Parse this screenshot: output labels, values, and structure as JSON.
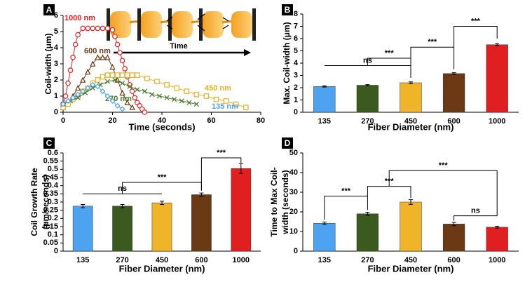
{
  "chart_data": [
    {
      "type": "line",
      "panel": "A",
      "xlabel": "Time (seconds)",
      "ylabel": [
        "Coil-width (μm)"
      ],
      "xlim": [
        0,
        80
      ],
      "xticks": [
        0,
        20,
        40,
        60,
        80
      ],
      "ylim": [
        0,
        6
      ],
      "yticks": [
        0,
        1,
        2,
        3,
        4,
        5,
        6
      ],
      "series": [
        {
          "name": "1000 nm",
          "color": "#e02020",
          "marker": "circle",
          "x": [
            0,
            1,
            2,
            3,
            4,
            5,
            6,
            8,
            10,
            12,
            14,
            16,
            18,
            20,
            21,
            22,
            23,
            24,
            25,
            26,
            27,
            28,
            29,
            30,
            31,
            32,
            33
          ],
          "values": [
            0.5,
            1,
            1.8,
            2.6,
            3.4,
            4.2,
            4.8,
            5.2,
            5.2,
            5.2,
            5.2,
            5.2,
            5.2,
            5.1,
            4.7,
            4.2,
            3.7,
            3.2,
            2.7,
            2.2,
            1.7,
            1.3,
            0.9,
            0.6,
            0.4,
            0.2,
            0
          ]
        },
        {
          "name": "600 nm",
          "color": "#6b3a14",
          "marker": "triangle",
          "x": [
            0,
            2,
            4,
            6,
            8,
            10,
            12,
            14,
            16,
            18,
            20,
            22,
            24,
            26,
            28
          ],
          "values": [
            0.3,
            0.6,
            1.0,
            1.5,
            2.0,
            2.5,
            3.0,
            3.4,
            3.4,
            3.4,
            2.8,
            2.0,
            1.2,
            0.6,
            0.3
          ]
        },
        {
          "name": "450 nm",
          "color": "#e8b020",
          "marker": "square",
          "x": [
            0,
            2,
            4,
            6,
            8,
            10,
            12,
            14,
            16,
            18,
            20,
            22,
            24,
            26,
            28,
            30,
            34,
            38,
            42,
            46,
            50,
            54,
            58,
            62,
            66,
            70,
            74
          ],
          "values": [
            0.3,
            0.5,
            0.8,
            1.0,
            1.3,
            1.5,
            1.8,
            2.0,
            2.2,
            2.3,
            2.3,
            2.3,
            2.3,
            2.3,
            2.3,
            2.3,
            2.1,
            1.9,
            1.7,
            1.5,
            1.3,
            1.1,
            1.0,
            0.8,
            0.7,
            0.5,
            0.3
          ]
        },
        {
          "name": "270 nm",
          "color": "#4a7a2a",
          "marker": "x",
          "x": [
            0,
            3,
            6,
            9,
            12,
            15,
            18,
            21,
            24,
            27,
            30,
            33,
            36,
            39,
            42,
            45,
            48,
            51,
            54
          ],
          "values": [
            0.5,
            0.7,
            0.9,
            1.2,
            1.5,
            1.7,
            1.9,
            2.0,
            1.8,
            1.6,
            1.4,
            1.3,
            1.1,
            1.0,
            0.9,
            0.8,
            0.7,
            0.6,
            0.5
          ]
        },
        {
          "name": "135 nm",
          "color": "#4da3f0",
          "marker": "diamond",
          "x": [
            0,
            2,
            4,
            6,
            8,
            10,
            12,
            14,
            16,
            18,
            20,
            22,
            24
          ],
          "values": [
            0.5,
            0.7,
            0.9,
            1.1,
            1.3,
            1.5,
            1.7,
            1.6,
            1.3,
            1.0,
            0.7,
            0.4,
            0.2
          ]
        }
      ],
      "annotation": "Time"
    },
    {
      "type": "bar",
      "panel": "B",
      "xlabel": "Fiber Diameter (nm)",
      "ylabel": [
        "Max. Coil-width (μm)"
      ],
      "categories": [
        "135",
        "270",
        "450",
        "600",
        "1000"
      ],
      "values": [
        2.1,
        2.2,
        2.4,
        3.15,
        5.5
      ],
      "errors": [
        0.05,
        0.05,
        0.07,
        0.07,
        0.08
      ],
      "colors": [
        "#4da3f0",
        "#3a5a20",
        "#f0b429",
        "#6b3a14",
        "#e02020"
      ],
      "ylim": [
        0,
        8
      ],
      "yticks": [
        0,
        1,
        2,
        3,
        4,
        5,
        6,
        7,
        8
      ],
      "significance": [
        "ns",
        "***",
        "***",
        "***"
      ]
    },
    {
      "type": "bar",
      "panel": "C",
      "xlabel": "Fiber Diameter (nm)",
      "ylabel": [
        "Coil Growth Rate",
        "(μm/seconds)"
      ],
      "categories": [
        "135",
        "270",
        "450",
        "600",
        "1000"
      ],
      "values": [
        0.275,
        0.275,
        0.295,
        0.345,
        0.505
      ],
      "errors": [
        0.01,
        0.01,
        0.01,
        0.01,
        0.03
      ],
      "colors": [
        "#4da3f0",
        "#3a5a20",
        "#f0b429",
        "#6b3a14",
        "#e02020"
      ],
      "ylim": [
        0,
        0.6
      ],
      "yticks": [
        0,
        0.05,
        0.1,
        0.15,
        0.2,
        0.25,
        0.3,
        0.35,
        0.4,
        0.45,
        0.5,
        0.55,
        0.6
      ],
      "significance": [
        "ns",
        "***",
        "***"
      ]
    },
    {
      "type": "bar",
      "panel": "D",
      "xlabel": "Fiber Diameter (nm)",
      "ylabel": [
        "Time to Max Coil-",
        "width (seconds)"
      ],
      "categories": [
        "135",
        "270",
        "450",
        "600",
        "1000"
      ],
      "values": [
        14.2,
        19,
        25,
        13.8,
        12.2
      ],
      "errors": [
        0.6,
        0.8,
        1.2,
        0.8,
        0.5
      ],
      "colors": [
        "#4da3f0",
        "#3a5a20",
        "#f0b429",
        "#6b3a14",
        "#e02020"
      ],
      "ylim": [
        0,
        50
      ],
      "yticks": [
        0,
        10,
        20,
        30,
        40,
        50
      ],
      "significance": [
        "***",
        "***",
        "***",
        "ns"
      ]
    }
  ]
}
